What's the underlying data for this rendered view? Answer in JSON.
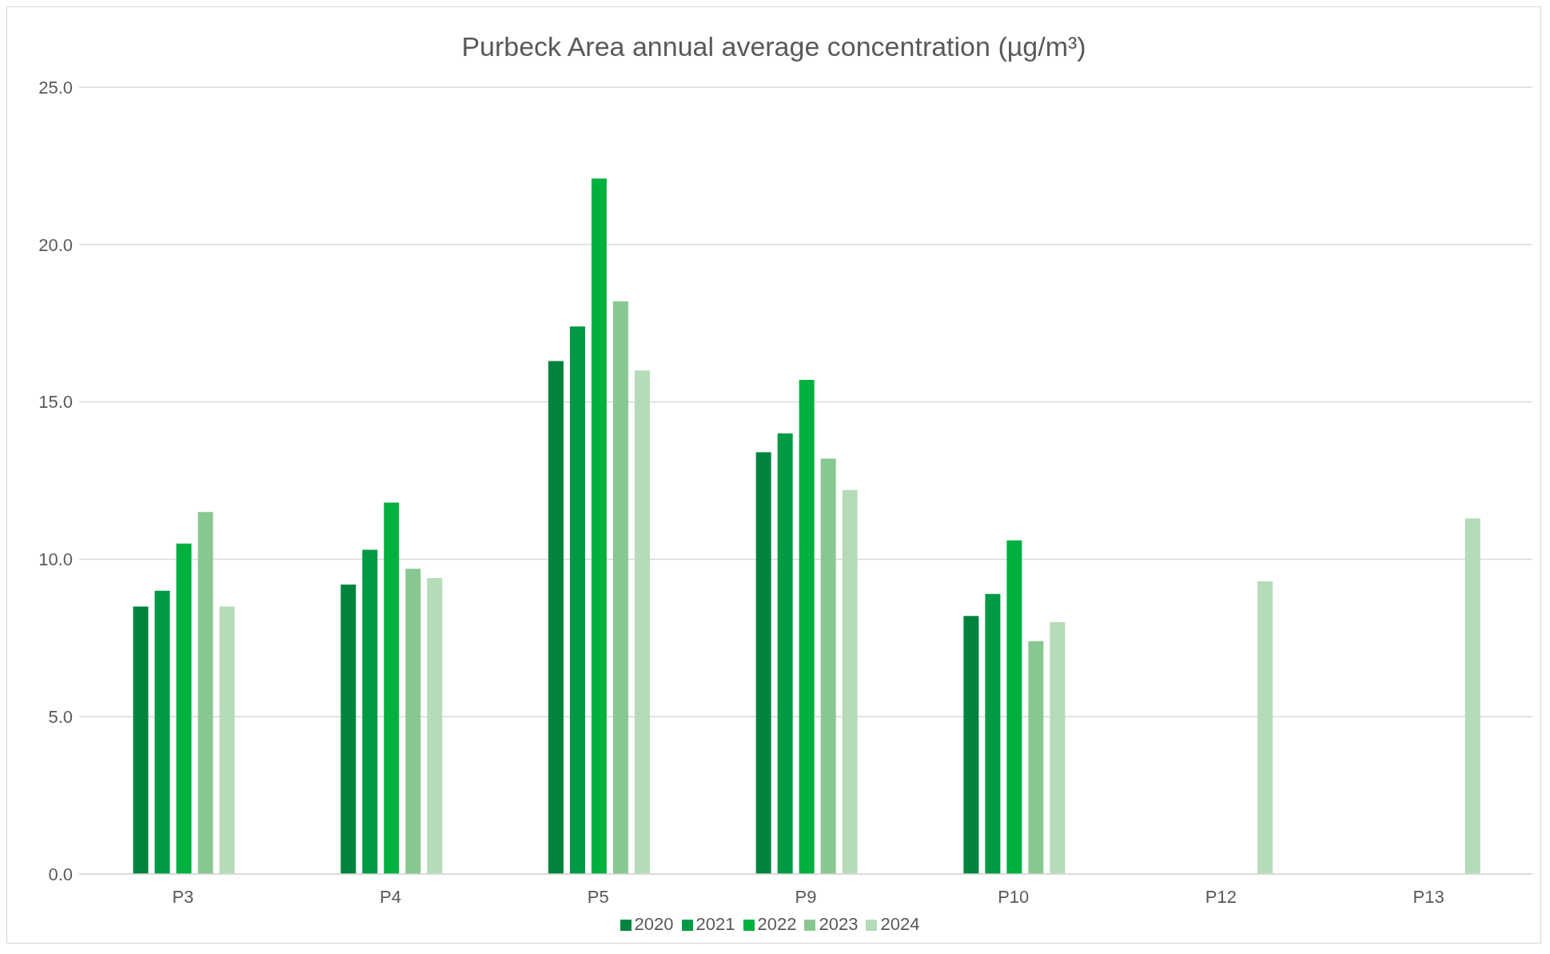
{
  "chart_data": {
    "type": "bar",
    "title": "Purbeck Area annual average concentration (µg/m³)",
    "categories": [
      "P3",
      "P4",
      "P5",
      "P9",
      "P10",
      "P12",
      "P13"
    ],
    "series": [
      {
        "name": "2020",
        "color": "#00843d",
        "values": [
          8.5,
          9.2,
          16.3,
          13.4,
          8.2,
          null,
          null
        ]
      },
      {
        "name": "2021",
        "color": "#009a44",
        "values": [
          9.0,
          10.3,
          17.4,
          14.0,
          8.9,
          null,
          null
        ]
      },
      {
        "name": "2022",
        "color": "#00b140",
        "values": [
          10.5,
          11.8,
          22.1,
          15.7,
          10.6,
          null,
          null
        ]
      },
      {
        "name": "2023",
        "color": "#88c890",
        "values": [
          11.5,
          9.7,
          18.2,
          13.2,
          7.4,
          null,
          null
        ]
      },
      {
        "name": "2024",
        "color": "#b5dbb8",
        "values": [
          8.5,
          9.4,
          16.0,
          12.2,
          8.0,
          9.3,
          11.3
        ]
      }
    ],
    "ylim": [
      0,
      25
    ],
    "yticks": [
      {
        "value": 0,
        "label": "0.0"
      },
      {
        "value": 5,
        "label": "5.0"
      },
      {
        "value": 10,
        "label": "10.0"
      },
      {
        "value": 15,
        "label": "15.0"
      },
      {
        "value": 20,
        "label": "20.0"
      },
      {
        "value": 25,
        "label": "25.0"
      }
    ],
    "grid": "y",
    "legend": "bottom"
  }
}
